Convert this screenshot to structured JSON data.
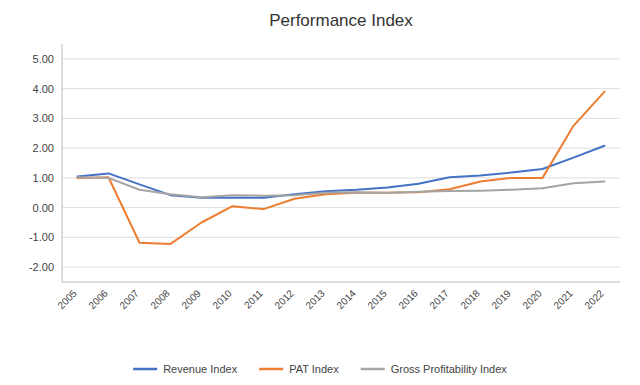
{
  "chart_data": {
    "type": "line",
    "title": "Performance Index",
    "categories": [
      "2005",
      "2006",
      "2007",
      "2008",
      "2009",
      "2010",
      "2011",
      "2012",
      "2013",
      "2014",
      "2015",
      "2016",
      "2017",
      "2018",
      "2019",
      "2020",
      "2021",
      "2022"
    ],
    "series": [
      {
        "name": "Revenue Index",
        "color": "#4472c4",
        "values": [
          1.05,
          1.15,
          0.78,
          0.42,
          0.33,
          0.33,
          0.33,
          0.45,
          0.55,
          0.6,
          0.68,
          0.8,
          1.02,
          1.08,
          1.18,
          1.3,
          1.68,
          2.08
        ]
      },
      {
        "name": "PAT Index",
        "color": "#ed7d31",
        "values": [
          1.0,
          1.02,
          -1.18,
          -1.22,
          -0.5,
          0.05,
          -0.05,
          0.3,
          0.45,
          0.5,
          0.5,
          0.52,
          0.62,
          0.88,
          1.0,
          1.0,
          2.75,
          3.9
        ]
      },
      {
        "name": "Gross Profitability Index",
        "color": "#a5a5a5",
        "values": [
          1.02,
          1.0,
          0.6,
          0.45,
          0.35,
          0.42,
          0.4,
          0.42,
          0.5,
          0.52,
          0.5,
          0.53,
          0.56,
          0.57,
          0.6,
          0.65,
          0.82,
          0.88
        ]
      }
    ],
    "ylim": [
      -2.5,
      5.5
    ],
    "yticks": [
      {
        "value": -2.0,
        "label": "-2.00"
      },
      {
        "value": -1.0,
        "label": "-1.00"
      },
      {
        "value": 0.0,
        "label": "0.00"
      },
      {
        "value": 1.0,
        "label": "1.00"
      },
      {
        "value": 2.0,
        "label": "2.00"
      },
      {
        "value": 3.0,
        "label": "3.00"
      },
      {
        "value": 4.0,
        "label": "4.00"
      },
      {
        "value": 5.0,
        "label": "5.00"
      }
    ],
    "grid": true,
    "legend": "bottom"
  }
}
